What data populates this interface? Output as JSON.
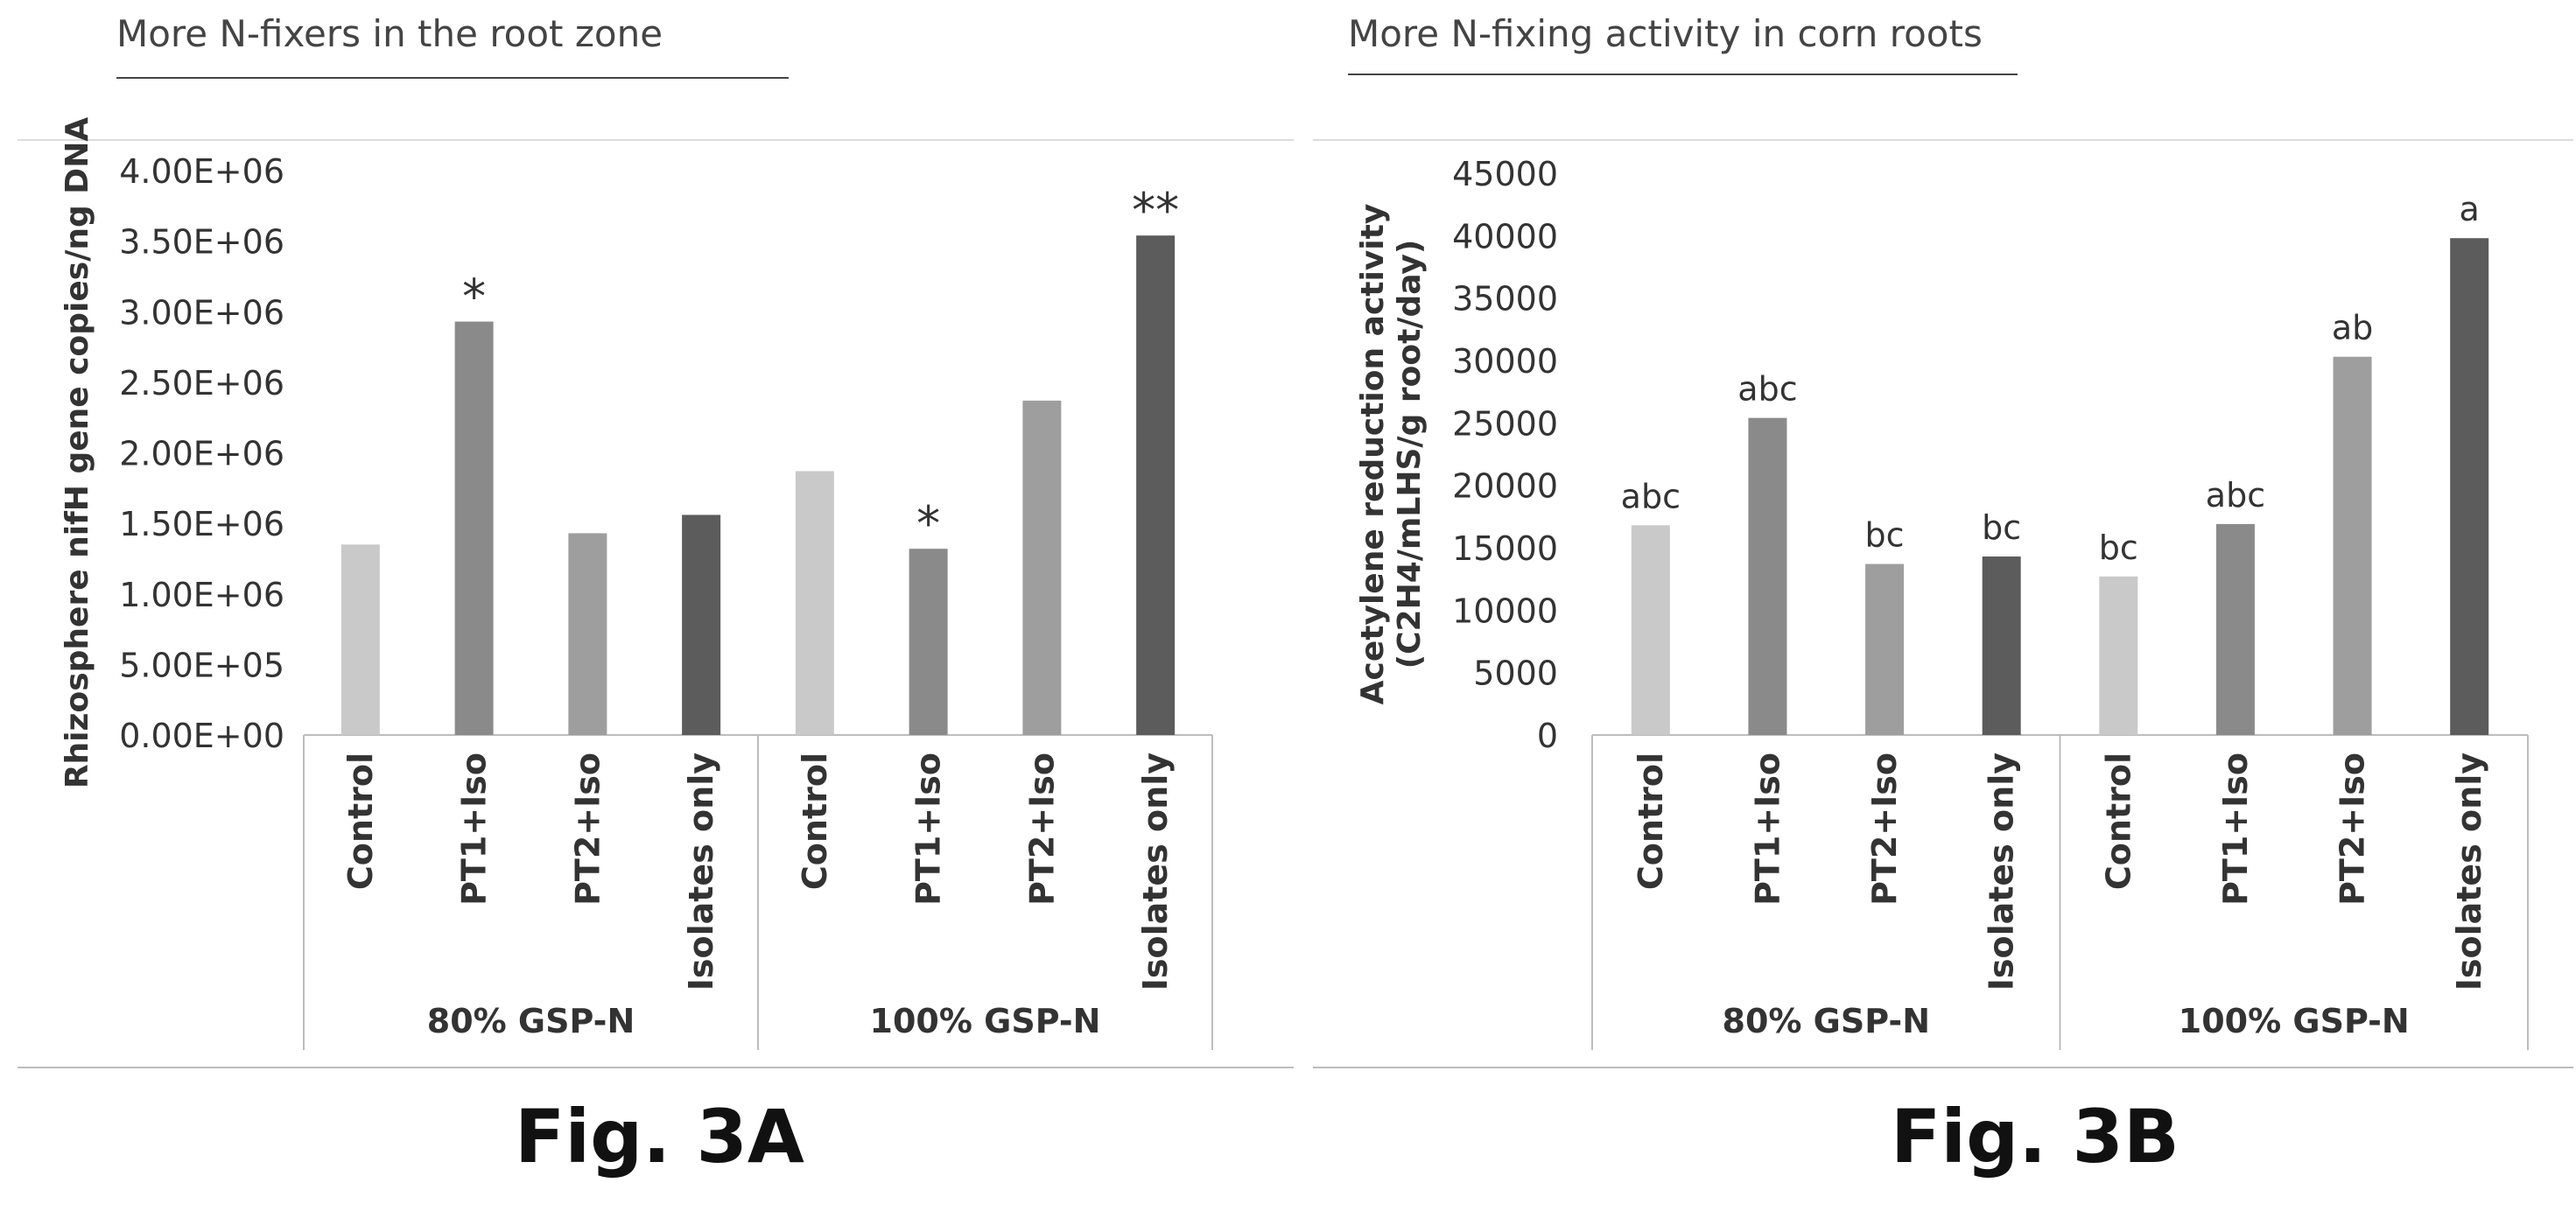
{
  "chart_data": [
    {
      "type": "bar",
      "heading": "More N-fixers in the root zone",
      "figure_label": "Fig. 3A",
      "ylabel": "Rhizosphere nifH gene copies/ng DNA",
      "ylim": [
        0,
        4000000
      ],
      "yticks": [
        0,
        500000,
        1000000,
        1500000,
        2000000,
        2500000,
        3000000,
        3500000,
        4000000
      ],
      "ytick_labels": [
        "0.00E+00",
        "5.00E+05",
        "1.00E+06",
        "1.50E+06",
        "2.00E+06",
        "2.50E+06",
        "3.00E+06",
        "3.50E+06",
        "4.00E+06"
      ],
      "groups": [
        "80% GSP-N",
        "100% GSP-N"
      ],
      "categories": [
        "Control",
        "PT1+Iso",
        "PT2+Iso",
        "Isolates only",
        "Control",
        "PT1+Iso",
        "PT2+Iso",
        "Isolates only"
      ],
      "values": [
        1350000,
        2930000,
        1430000,
        1560000,
        1870000,
        1320000,
        2370000,
        3540000
      ],
      "annotations": [
        "",
        "*",
        "",
        "",
        "",
        "*",
        "",
        "**"
      ],
      "colors": [
        "#c9c9c9",
        "#8a8a8a",
        "#9e9e9e",
        "#5c5c5c",
        "#c9c9c9",
        "#8a8a8a",
        "#9e9e9e",
        "#5c5c5c"
      ],
      "grid": false,
      "legend": "none"
    },
    {
      "type": "bar",
      "heading": "More N-fixing activity in corn roots",
      "figure_label": "Fig. 3B",
      "ylabel_lines": [
        "Acetylene reduction activity",
        "(C2H4/mLHS/g root/day)"
      ],
      "ylim": [
        0,
        45000
      ],
      "yticks": [
        0,
        5000,
        10000,
        15000,
        20000,
        25000,
        30000,
        35000,
        40000,
        45000
      ],
      "ytick_labels": [
        "0",
        "5000",
        "10000",
        "15000",
        "20000",
        "25000",
        "30000",
        "35000",
        "40000",
        "45000"
      ],
      "groups": [
        "80% GSP-N",
        "100% GSP-N"
      ],
      "categories": [
        "Control",
        "PT1+Iso",
        "PT2+Iso",
        "Isolates only",
        "Control",
        "PT1+Iso",
        "PT2+Iso",
        "Isolates only"
      ],
      "values": [
        16800,
        25400,
        13700,
        14300,
        12700,
        16900,
        30300,
        39800
      ],
      "annotations": [
        "abc",
        "abc",
        "bc",
        "bc",
        "bc",
        "abc",
        "ab",
        "a"
      ],
      "colors": [
        "#c9c9c9",
        "#8a8a8a",
        "#9e9e9e",
        "#5c5c5c",
        "#c9c9c9",
        "#8a8a8a",
        "#9e9e9e",
        "#5c5c5c"
      ],
      "grid": false,
      "legend": "none"
    }
  ]
}
